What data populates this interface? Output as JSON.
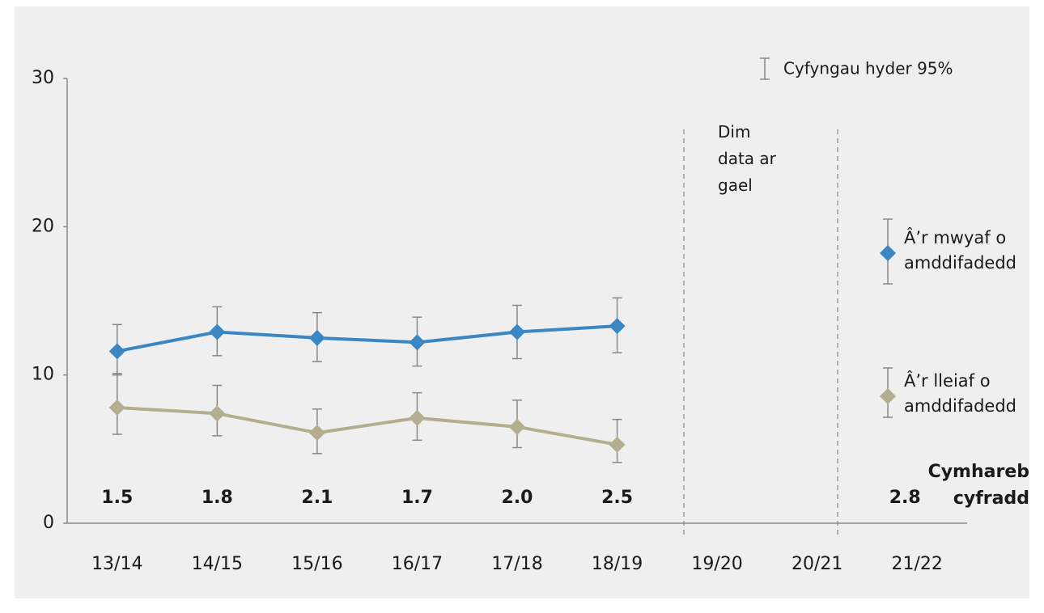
{
  "chart_data": {
    "type": "line",
    "categories": [
      "13/14",
      "14/15",
      "15/16",
      "16/17",
      "17/18",
      "18/19",
      "19/20",
      "20/21",
      "21/22"
    ],
    "series": [
      {
        "name": "Â’r mwyaf o amddifadedd",
        "color": "#3a87c4",
        "values": [
          11.6,
          12.9,
          12.5,
          12.2,
          12.9,
          13.3,
          null,
          null,
          null
        ],
        "upper": [
          13.4,
          14.6,
          14.2,
          13.9,
          14.7,
          15.2,
          null,
          null,
          null
        ],
        "lower": [
          10.0,
          11.3,
          10.9,
          10.6,
          11.1,
          11.5,
          null,
          null,
          null
        ]
      },
      {
        "name": "Â’r lleiaf o amddifadedd",
        "color": "#b3ae8f",
        "values": [
          7.8,
          7.4,
          6.1,
          7.1,
          6.5,
          5.3,
          null,
          null,
          null
        ],
        "upper": [
          10.1,
          9.3,
          7.7,
          8.8,
          8.3,
          7.0,
          null,
          null,
          null
        ],
        "lower": [
          6.0,
          5.9,
          4.7,
          5.6,
          5.1,
          4.1,
          null,
          null,
          null
        ]
      }
    ],
    "ratio_labels": [
      "1.5",
      "1.8",
      "2.1",
      "1.7",
      "2.0",
      "2.5",
      null,
      null,
      "2.8"
    ],
    "ratio_title": [
      "Cymhareb",
      "cyfradd"
    ],
    "annotation": "Dim data ar gael",
    "ci_legend": "Cyfyngau hyder 95%",
    "ylim": [
      0,
      30
    ],
    "yticks": [
      0,
      10,
      20,
      30
    ],
    "grid": false
  }
}
